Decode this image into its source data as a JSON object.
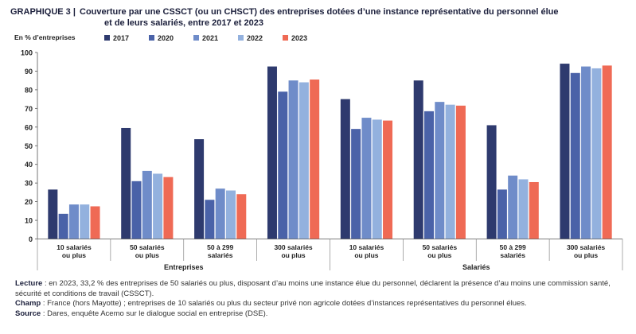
{
  "header": {
    "number": "GRAPHIQUE 3 |",
    "title_line1": "Couverture par une CSSCT (ou un CHSCT) des entreprises dotées d’une instance représentative du personnel élue",
    "title_line2": "et de leurs salariés, entre 2017 et 2023"
  },
  "chart_data": {
    "type": "bar",
    "ylabel": "En % d’entreprises",
    "ylim": [
      0,
      100
    ],
    "yticks": [
      0,
      10,
      20,
      30,
      40,
      50,
      60,
      70,
      80,
      90,
      100
    ],
    "categories": [
      "10 salariés\nou plus",
      "50 salariés\nou plus",
      "50 à 299\nsalariés",
      "300 salariés\nou plus",
      "10 salariés\nou plus",
      "50 salariés\nou plus",
      "50 à 299\nsalariés",
      "300 salariés\nou plus"
    ],
    "groups": [
      {
        "label": "Entreprises",
        "start": 0,
        "end": 3
      },
      {
        "label": "Salariés",
        "start": 4,
        "end": 7
      }
    ],
    "series": [
      {
        "name": "2017",
        "color": "#2e3a6e",
        "values": [
          26.5,
          59.5,
          53.5,
          92.5,
          75,
          85,
          61,
          94
        ]
      },
      {
        "name": "2020",
        "color": "#4a62a8",
        "values": [
          13.5,
          31,
          21,
          79,
          59,
          68.5,
          26.5,
          89
        ]
      },
      {
        "name": "2021",
        "color": "#6f8cc9",
        "values": [
          18.5,
          36.5,
          27,
          85,
          65,
          73.5,
          34,
          92.5
        ]
      },
      {
        "name": "2022",
        "color": "#93b1de",
        "values": [
          18.5,
          35,
          26,
          84,
          64,
          72,
          32,
          91.5
        ]
      },
      {
        "name": "2023",
        "color": "#ef6a55",
        "values": [
          17.5,
          33.2,
          24,
          85.5,
          63.5,
          71.5,
          30.5,
          93
        ]
      }
    ]
  },
  "notes": {
    "lecture_label": "Lecture",
    "lecture_text": " : en 2023, 33,2 % des entreprises de 50 salariés ou plus, disposant d’au moins une instance élue du personnel, déclarent la présence d’au moins une commission santé, sécurité et conditions de travail (CSSCT).",
    "champ_label": "Champ",
    "champ_text": " : France (hors Mayotte) ; entreprises de 10 salariés ou plus du secteur privé non agricole dotées d’instances représentatives du personnel élues.",
    "source_label": "Source",
    "source_text": " : Dares, enquête Acemo sur le dialogue social en entreprise (DSE)."
  }
}
